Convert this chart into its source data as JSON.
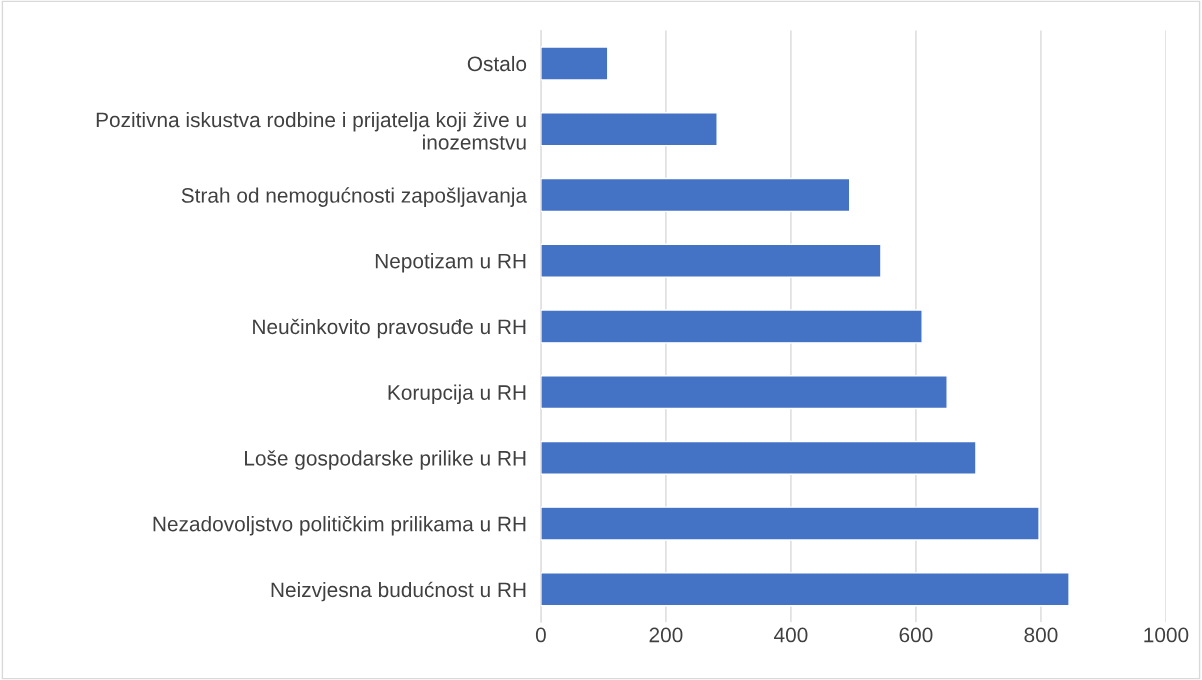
{
  "chart_data": {
    "type": "bar",
    "orientation": "horizontal",
    "categories": [
      "Ostalo",
      "Pozitivna iskustva rodbine i prijatelja koji žive u\ninozemstvu",
      "Strah od nemogućnosti zapošljavanja",
      "Nepotizam u RH",
      "Neučinkovito pravosuđe u RH",
      "Korupcija u RH",
      "Loše gospodarske prilike u RH",
      "Nezadovoljstvo političkim prilikama u RH",
      "Neizvjesna budućnost u RH"
    ],
    "values": [
      107,
      282,
      494,
      544,
      610,
      650,
      696,
      797,
      845
    ],
    "color": "#4472c4",
    "xlim": [
      0,
      1000
    ],
    "xticks": [
      0,
      200,
      400,
      600,
      800,
      1000
    ],
    "grid": "x",
    "legend": false
  }
}
